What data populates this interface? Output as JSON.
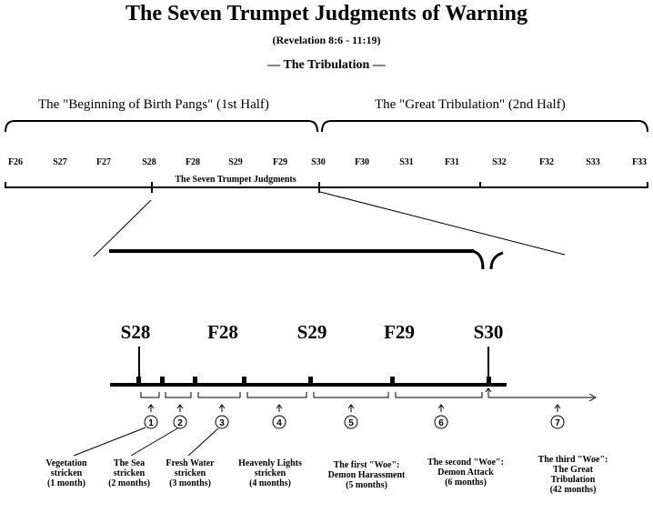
{
  "title": "The Seven Trumpet Judgments of Warning",
  "subtitle": "(Revelation 8:6 - 11:19)",
  "tribulation_label": "— The Tribulation —",
  "first_half_label": "The \"Beginning of Birth Pangs\" (1st Half)",
  "second_half_label": "The \"Great Tribulation\" (2nd Half)",
  "seasons": [
    "F26",
    "S27",
    "F27",
    "S28",
    "F28",
    "S29",
    "F29",
    "S30",
    "F30",
    "S31",
    "F31",
    "S32",
    "F32",
    "S33",
    "F33"
  ],
  "trumpet_span_label": "The Seven Trumpet Judgments",
  "zoom_seasons": [
    "S28",
    "F28",
    "S29",
    "F29",
    "S30"
  ],
  "trumpets": [
    {
      "number": "1",
      "lines": [
        "Vegetation",
        "stricken",
        "(1 month)"
      ]
    },
    {
      "number": "2",
      "lines": [
        "The Sea",
        "stricken",
        "(2 months)"
      ]
    },
    {
      "number": "3",
      "lines": [
        "Fresh Water",
        "stricken",
        "(3 months)"
      ]
    },
    {
      "number": "4",
      "lines": [
        "Heavenly Lights",
        "stricken",
        "(4 months)"
      ]
    },
    {
      "number": "5",
      "lines": [
        "The first \"Woe\":",
        "Demon Harassment",
        "(5 months)"
      ]
    },
    {
      "number": "6",
      "lines": [
        "The second \"Woe\":",
        "Demon Attack",
        "(6 months)"
      ]
    },
    {
      "number": "7",
      "lines": [
        "The third \"Woe\":",
        "The Great",
        "Tribulation",
        "(42 months)"
      ]
    }
  ]
}
